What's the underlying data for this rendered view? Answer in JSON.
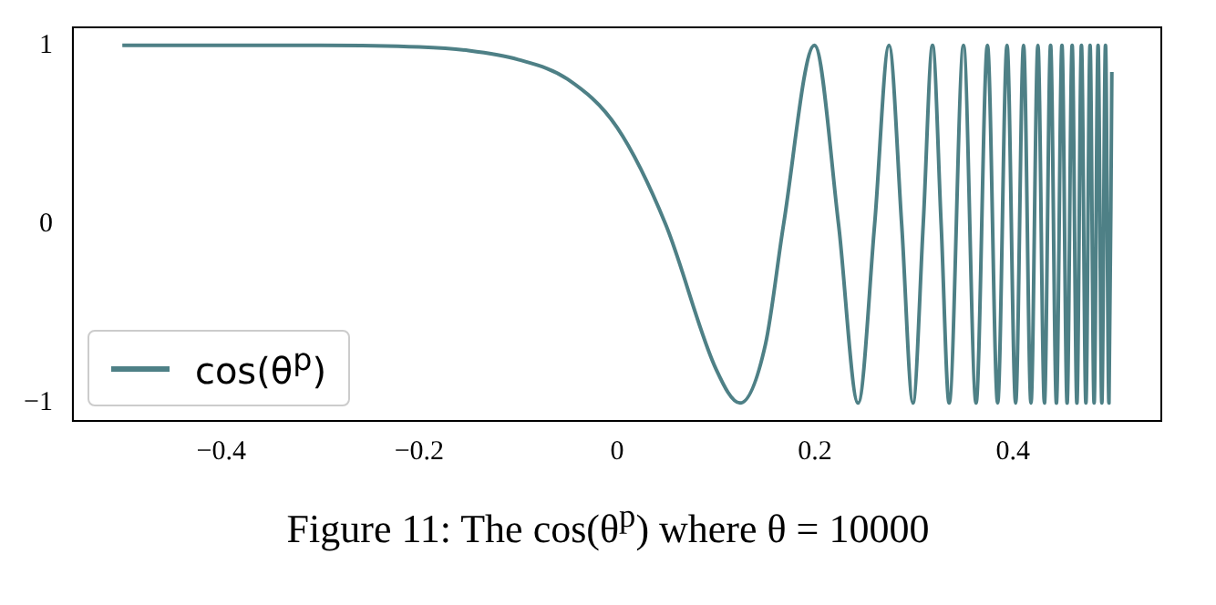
{
  "chart_data": {
    "type": "line",
    "annotations": [
      "Figure 11: The cos(θ$^{p}$) where θ = 10000"
    ],
    "x": [
      -0.5,
      -0.4,
      -0.3,
      -0.2,
      -0.15,
      -0.1,
      -0.05,
      0,
      0.049,
      0.1,
      0.1243,
      0.15,
      0.1683,
      0.1995,
      0.2238,
      0.2436,
      0.2603,
      0.2748,
      0.2876,
      0.299,
      0.3094,
      0.3188,
      0.3275,
      0.3356,
      0.3501,
      0.3628,
      0.3743,
      0.3846,
      0.3941,
      0.4028,
      0.4108,
      0.4183,
      0.4253,
      0.4319,
      0.4381,
      0.444,
      0.4496,
      0.4548,
      0.4599,
      0.4647,
      0.4693,
      0.4738,
      0.478,
      0.4821,
      0.4861,
      0.4899,
      0.4936,
      0.4971,
      0.5
    ],
    "series": [
      {
        "name": "cos(θ$^{p}$)",
        "color": "#4e8086",
        "values": [
          1,
          1,
          1,
          0.99,
          0.97,
          0.92,
          0.81,
          0.54,
          0,
          -0.81,
          -1,
          -0.67,
          0,
          1,
          0,
          -1,
          0,
          1,
          0,
          -1,
          0,
          1,
          0,
          -1,
          1,
          -1,
          1,
          -1,
          1,
          -1,
          1,
          -1,
          1,
          -1,
          1,
          -1,
          1,
          -1,
          1,
          -1,
          1,
          -1,
          1,
          -1,
          1,
          -1,
          1,
          -1,
          0.85
        ]
      }
    ],
    "xlim": [
      -0.55,
      0.55
    ],
    "xticks": [
      -0.4,
      -0.2,
      0.0,
      0.2,
      0.4
    ],
    "ylim": [
      -1.1,
      1.1
    ],
    "yticks": [
      -1,
      0,
      1
    ],
    "legend": "bottom left",
    "marker": "none",
    "grid": false
  }
}
